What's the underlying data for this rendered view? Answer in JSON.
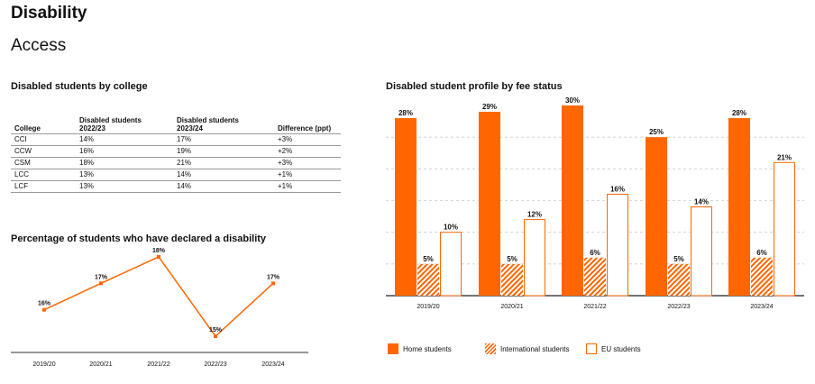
{
  "page": {
    "title": "Disability",
    "section": "Access"
  },
  "college_table": {
    "title": "Disabled students by college",
    "headers": [
      "College",
      "Disabled students\n2022/23",
      "Disabled students\n2023/24",
      "Difference (ppt)"
    ],
    "rows": [
      [
        "CCI",
        "14%",
        "17%",
        "+3%"
      ],
      [
        "CCW",
        "16%",
        "19%",
        "+2%"
      ],
      [
        "CSM",
        "18%",
        "21%",
        "+3%"
      ],
      [
        "LCC",
        "13%",
        "14%",
        "+1%"
      ],
      [
        "LCF",
        "13%",
        "14%",
        "+1%"
      ]
    ]
  },
  "chart_data": [
    {
      "type": "line",
      "title": "Percentage of students who have declared a disability",
      "x": [
        "2019/20",
        "2020/21",
        "2021/22",
        "2022/23",
        "2023/24"
      ],
      "series": [
        {
          "values": [
            16,
            17,
            18,
            15,
            17
          ],
          "labels": [
            "16%",
            "17%",
            "18%",
            "15%",
            "17%"
          ]
        }
      ],
      "color": "#ff6600",
      "grid": false
    },
    {
      "type": "bar",
      "title": "Disabled student profile by fee status",
      "categories": [
        "2019/20",
        "2020/21",
        "2021/22",
        "2022/23",
        "2023/24"
      ],
      "series": [
        {
          "name": "Home students",
          "values": [
            28,
            29,
            30,
            25,
            28
          ],
          "style": "solid",
          "color": "#ff6600"
        },
        {
          "name": "International students",
          "values": [
            5,
            5,
            6,
            5,
            6
          ],
          "style": "hatched",
          "color": "#ff6600"
        },
        {
          "name": "EU students",
          "values": [
            10,
            12,
            16,
            14,
            21
          ],
          "style": "outline",
          "color": "#ff6600"
        }
      ],
      "ylim": [
        0,
        30
      ],
      "grid": true,
      "legend_position": "bottom"
    }
  ]
}
